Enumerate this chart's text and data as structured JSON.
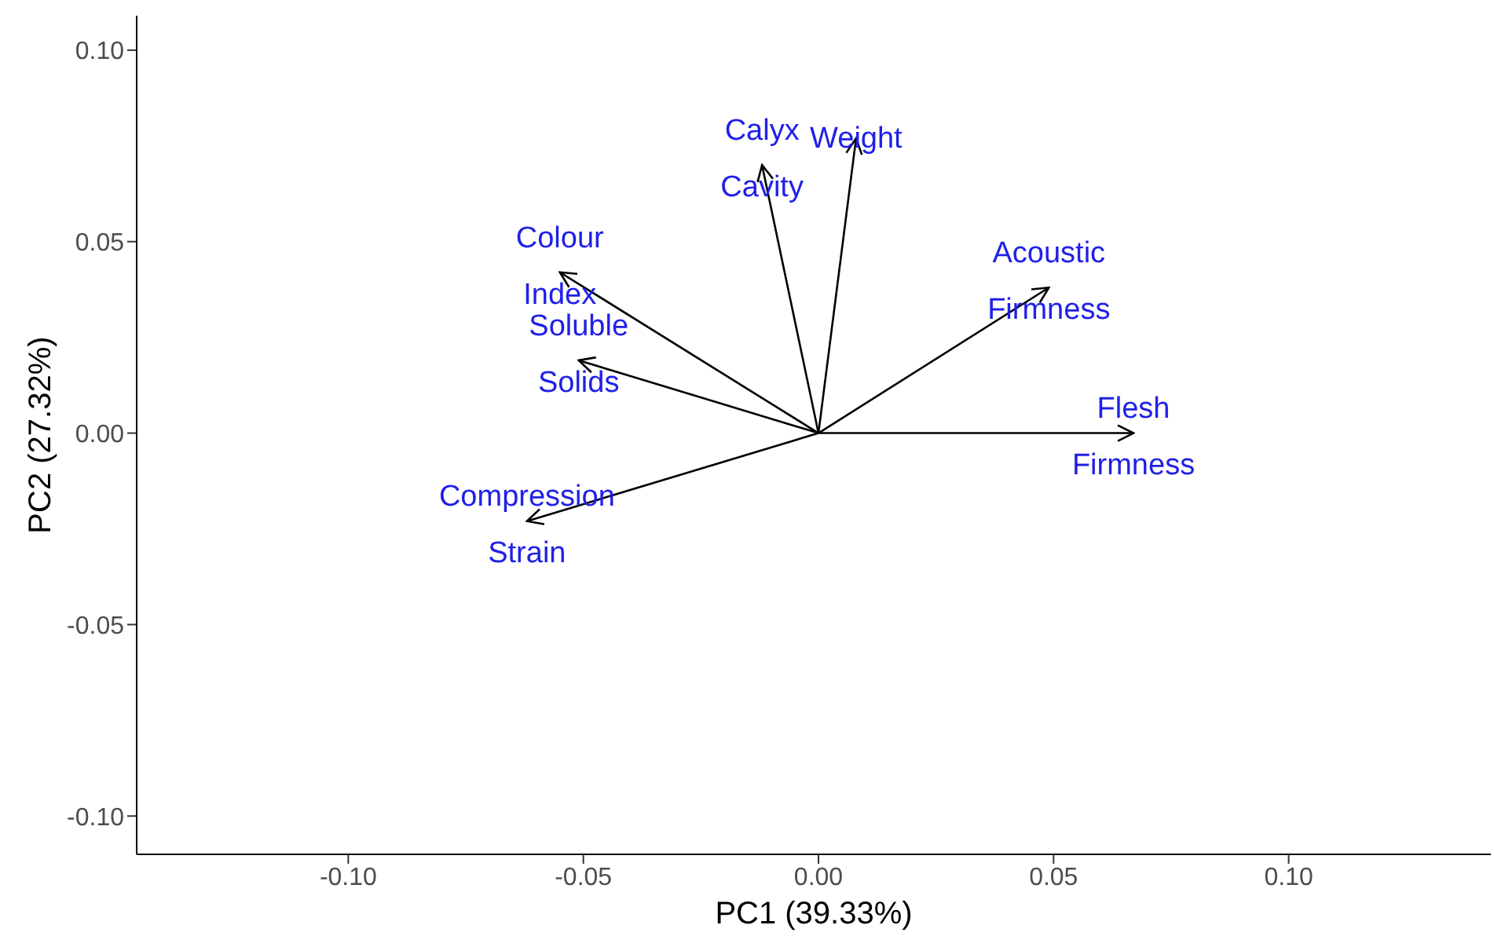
{
  "chart_data": {
    "type": "line",
    "xlabel": "PC1 (39.33%)",
    "ylabel": "PC2 (27.32%)",
    "xlim": [
      -0.145,
      0.143
    ],
    "ylim": [
      -0.11,
      0.109
    ],
    "xticks": [
      {
        "value": -0.1,
        "label": "-0.10"
      },
      {
        "value": -0.05,
        "label": "-0.05"
      },
      {
        "value": 0,
        "label": "0.00"
      },
      {
        "value": 0.05,
        "label": "0.05"
      },
      {
        "value": 0.1,
        "label": "0.10"
      }
    ],
    "yticks": [
      {
        "value": -0.1,
        "label": "-0.10"
      },
      {
        "value": -0.05,
        "label": "-0.05"
      },
      {
        "value": 0,
        "label": "0.00"
      },
      {
        "value": 0.05,
        "label": "0.05"
      },
      {
        "value": 0.1,
        "label": "0.10"
      }
    ],
    "grid": false,
    "series": [
      {
        "name": "Calyx Cavity",
        "color": "#000000",
        "x": [
          0,
          -0.012
        ],
        "values": [
          0,
          0.07
        ]
      },
      {
        "name": "Weight",
        "color": "#000000",
        "x": [
          0,
          0.008
        ],
        "values": [
          0,
          0.077
        ]
      },
      {
        "name": "Acoustic Firmness",
        "color": "#000000",
        "x": [
          0,
          0.049
        ],
        "values": [
          0,
          0.038
        ]
      },
      {
        "name": "Flesh Firmness",
        "color": "#000000",
        "x": [
          0,
          0.067
        ],
        "values": [
          0,
          0
        ]
      },
      {
        "name": "Colour Index",
        "color": "#000000",
        "x": [
          0,
          -0.055
        ],
        "values": [
          0,
          0.042
        ]
      },
      {
        "name": "Soluble Solids",
        "color": "#000000",
        "x": [
          0,
          -0.051
        ],
        "values": [
          0,
          0.019
        ]
      },
      {
        "name": "Compression Strain",
        "color": "#000000",
        "x": [
          0,
          -0.062
        ],
        "values": [
          0,
          -0.023
        ]
      }
    ]
  }
}
